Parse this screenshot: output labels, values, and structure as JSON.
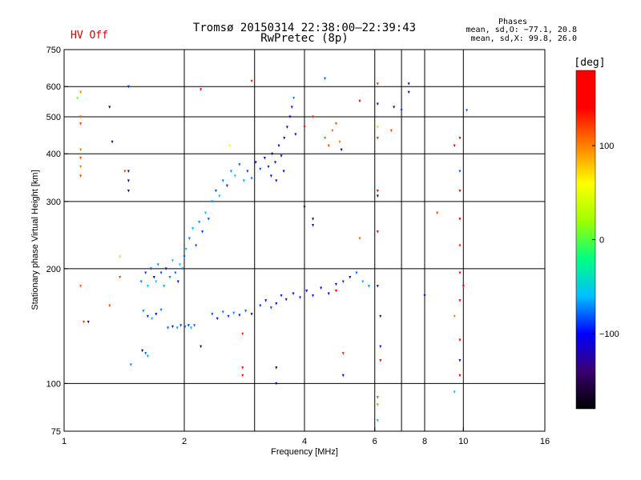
{
  "header": {
    "title_line1": "Tromsø 20150314 22:38:00–22:39:43",
    "title_line2": "RwPretec (8p)",
    "hv_status": "HV Off",
    "hv_color": "#d00000"
  },
  "phases": {
    "title": "Phases",
    "line_o": "mean, sd,O: −77.1, 20.8",
    "line_x": "mean, sd,X:  99.8, 26.0"
  },
  "chart_data": {
    "type": "scatter",
    "xlabel": "Frequency [MHz]",
    "ylabel": "Stationary phase Virtual Height [km]",
    "x_scale": "log",
    "y_scale": "log",
    "xlim": [
      1,
      16
    ],
    "ylim": [
      75,
      750
    ],
    "x_ticks": [
      {
        "v": 1,
        "label": "1"
      },
      {
        "v": 2,
        "label": "2"
      },
      {
        "v": 4,
        "label": "4"
      },
      {
        "v": 6,
        "label": "6"
      },
      {
        "v": 8,
        "label": "8"
      },
      {
        "v": 10,
        "label": "10"
      },
      {
        "v": 16,
        "label": "16"
      }
    ],
    "x_gridlines": [
      2,
      3,
      4,
      6,
      7,
      8,
      10
    ],
    "y_ticks": [
      {
        "v": 75,
        "label": "75"
      },
      {
        "v": 100,
        "label": "100"
      },
      {
        "v": 200,
        "label": "200"
      },
      {
        "v": 300,
        "label": "300"
      },
      {
        "v": 400,
        "label": "400"
      },
      {
        "v": 500,
        "label": "500"
      },
      {
        "v": 600,
        "label": "600"
      },
      {
        "v": 750,
        "label": "750"
      }
    ],
    "y_gridlines": [
      100,
      200,
      300,
      400,
      500,
      600
    ],
    "grid": true,
    "colorbar": {
      "label": "[deg]",
      "range": [
        -180,
        180
      ],
      "ticks": [
        {
          "v": 100,
          "label": "100"
        },
        {
          "v": 0,
          "label": "0"
        },
        {
          "v": -100,
          "label": "−100"
        }
      ],
      "stops": [
        "#000000",
        "#3a0070",
        "#0000ff",
        "#00c0ff",
        "#00ff80",
        "#a0ff00",
        "#ffff00",
        "#ff8000",
        "#ff0000",
        "#ff0000"
      ]
    },
    "series": [
      {
        "values": [
          {
            "x": 1.56,
            "y": 185,
            "p": -75
          },
          {
            "x": 1.6,
            "y": 195,
            "p": -90
          },
          {
            "x": 1.62,
            "y": 180,
            "p": -60
          },
          {
            "x": 1.65,
            "y": 200,
            "p": -80
          },
          {
            "x": 1.68,
            "y": 190,
            "p": -100
          },
          {
            "x": 1.7,
            "y": 185,
            "p": -55
          },
          {
            "x": 1.72,
            "y": 205,
            "p": -70
          },
          {
            "x": 1.75,
            "y": 195,
            "p": -85
          },
          {
            "x": 1.78,
            "y": 180,
            "p": -65
          },
          {
            "x": 1.8,
            "y": 200,
            "p": -95
          },
          {
            "x": 1.84,
            "y": 190,
            "p": -75
          },
          {
            "x": 1.87,
            "y": 210,
            "p": -60
          },
          {
            "x": 1.9,
            "y": 195,
            "p": -80
          },
          {
            "x": 1.93,
            "y": 185,
            "p": -100
          },
          {
            "x": 1.95,
            "y": 205,
            "p": -55
          },
          {
            "x": 1.98,
            "y": 200,
            "p": -70
          },
          {
            "x": 2.0,
            "y": 215,
            "p": -85
          },
          {
            "x": 1.58,
            "y": 155,
            "p": -70
          },
          {
            "x": 1.62,
            "y": 150,
            "p": -90
          },
          {
            "x": 1.66,
            "y": 148,
            "p": -60
          },
          {
            "x": 1.7,
            "y": 152,
            "p": -100
          },
          {
            "x": 1.75,
            "y": 156,
            "p": -75
          },
          {
            "x": 1.82,
            "y": 140,
            "p": -80
          },
          {
            "x": 1.87,
            "y": 141,
            "p": -95
          },
          {
            "x": 1.92,
            "y": 140,
            "p": -65
          },
          {
            "x": 1.96,
            "y": 142,
            "p": -85
          },
          {
            "x": 2.01,
            "y": 141,
            "p": -75
          },
          {
            "x": 2.05,
            "y": 142,
            "p": -90
          },
          {
            "x": 2.08,
            "y": 140,
            "p": -60
          },
          {
            "x": 2.12,
            "y": 142,
            "p": -80
          },
          {
            "x": 2.02,
            "y": 225,
            "p": -55
          },
          {
            "x": 2.06,
            "y": 240,
            "p": -75
          },
          {
            "x": 2.1,
            "y": 255,
            "p": -60
          },
          {
            "x": 2.14,
            "y": 230,
            "p": -85
          },
          {
            "x": 2.18,
            "y": 265,
            "p": -70
          },
          {
            "x": 2.22,
            "y": 250,
            "p": -90
          },
          {
            "x": 2.26,
            "y": 280,
            "p": -55
          },
          {
            "x": 2.3,
            "y": 270,
            "p": -80
          },
          {
            "x": 2.35,
            "y": 300,
            "p": -65
          },
          {
            "x": 2.4,
            "y": 320,
            "p": -85
          },
          {
            "x": 2.45,
            "y": 310,
            "p": -60
          },
          {
            "x": 2.5,
            "y": 340,
            "p": -75
          },
          {
            "x": 2.56,
            "y": 330,
            "p": -95
          },
          {
            "x": 2.62,
            "y": 360,
            "p": -70
          },
          {
            "x": 2.68,
            "y": 350,
            "p": -55
          },
          {
            "x": 2.75,
            "y": 375,
            "p": -80
          },
          {
            "x": 2.82,
            "y": 340,
            "p": -65
          },
          {
            "x": 2.88,
            "y": 360,
            "p": -90
          },
          {
            "x": 2.95,
            "y": 345,
            "p": -75
          },
          {
            "x": 3.02,
            "y": 380,
            "p": -100
          },
          {
            "x": 3.1,
            "y": 365,
            "p": -85
          },
          {
            "x": 3.18,
            "y": 390,
            "p": -110
          },
          {
            "x": 3.25,
            "y": 370,
            "p": -95
          },
          {
            "x": 3.32,
            "y": 400,
            "p": -115
          },
          {
            "x": 3.38,
            "y": 380,
            "p": -100
          },
          {
            "x": 3.45,
            "y": 420,
            "p": -120
          },
          {
            "x": 3.5,
            "y": 395,
            "p": -105
          },
          {
            "x": 3.56,
            "y": 440,
            "p": -115
          },
          {
            "x": 3.62,
            "y": 470,
            "p": -100
          },
          {
            "x": 3.68,
            "y": 500,
            "p": -110
          },
          {
            "x": 3.72,
            "y": 530,
            "p": -95
          },
          {
            "x": 3.76,
            "y": 560,
            "p": -70
          },
          {
            "x": 3.8,
            "y": 450,
            "p": -120
          },
          {
            "x": 3.3,
            "y": 350,
            "p": -110
          },
          {
            "x": 3.4,
            "y": 340,
            "p": -125
          },
          {
            "x": 3.55,
            "y": 360,
            "p": -105
          },
          {
            "x": 2.35,
            "y": 152,
            "p": -85
          },
          {
            "x": 2.42,
            "y": 148,
            "p": -100
          },
          {
            "x": 2.5,
            "y": 154,
            "p": -75
          },
          {
            "x": 2.58,
            "y": 150,
            "p": -90
          },
          {
            "x": 2.66,
            "y": 153,
            "p": -70
          },
          {
            "x": 2.75,
            "y": 151,
            "p": -95
          },
          {
            "x": 2.85,
            "y": 155,
            "p": -80
          },
          {
            "x": 2.95,
            "y": 152,
            "p": -100
          },
          {
            "x": 3.1,
            "y": 160,
            "p": -90
          },
          {
            "x": 3.2,
            "y": 165,
            "p": -110
          },
          {
            "x": 3.3,
            "y": 158,
            "p": -85
          },
          {
            "x": 3.4,
            "y": 162,
            "p": -105
          },
          {
            "x": 3.5,
            "y": 170,
            "p": -95
          },
          {
            "x": 3.6,
            "y": 166,
            "p": -115
          },
          {
            "x": 3.75,
            "y": 172,
            "p": -100
          },
          {
            "x": 3.9,
            "y": 168,
            "p": -90
          },
          {
            "x": 4.05,
            "y": 175,
            "p": -105
          },
          {
            "x": 4.2,
            "y": 170,
            "p": -95
          },
          {
            "x": 4.4,
            "y": 178,
            "p": -110
          },
          {
            "x": 4.6,
            "y": 172,
            "p": -100
          },
          {
            "x": 4.8,
            "y": 182,
            "p": -115
          },
          {
            "x": 5.0,
            "y": 185,
            "p": -90
          },
          {
            "x": 5.2,
            "y": 190,
            "p": -105
          },
          {
            "x": 5.4,
            "y": 195,
            "p": -80
          },
          {
            "x": 5.6,
            "y": 185,
            "p": -65
          },
          {
            "x": 5.8,
            "y": 180,
            "p": -70
          },
          {
            "x": 4.5,
            "y": 440,
            "p": 110
          },
          {
            "x": 4.6,
            "y": 420,
            "p": 120
          },
          {
            "x": 4.7,
            "y": 460,
            "p": 105
          },
          {
            "x": 4.8,
            "y": 480,
            "p": 115
          },
          {
            "x": 4.9,
            "y": 430,
            "p": 100
          },
          {
            "x": 4.2,
            "y": 500,
            "p": 125
          },
          {
            "x": 4.95,
            "y": 410,
            "p": -100
          },
          {
            "x": 1.1,
            "y": 580,
            "p": 100
          },
          {
            "x": 1.1,
            "y": 500,
            "p": 110
          },
          {
            "x": 1.1,
            "y": 480,
            "p": 120
          },
          {
            "x": 1.1,
            "y": 410,
            "p": 105
          },
          {
            "x": 1.1,
            "y": 390,
            "p": 115
          },
          {
            "x": 1.1,
            "y": 370,
            "p": 100
          },
          {
            "x": 1.1,
            "y": 350,
            "p": 120
          },
          {
            "x": 1.08,
            "y": 560,
            "p": 10
          },
          {
            "x": 1.1,
            "y": 180,
            "p": 110
          },
          {
            "x": 1.12,
            "y": 145,
            "p": 120
          },
          {
            "x": 1.15,
            "y": 145,
            "p": -140
          },
          {
            "x": 1.3,
            "y": 530,
            "p": -150
          },
          {
            "x": 1.32,
            "y": 430,
            "p": -140
          },
          {
            "x": 1.38,
            "y": 215,
            "p": 20
          },
          {
            "x": 1.45,
            "y": 360,
            "p": -140
          },
          {
            "x": 1.45,
            "y": 340,
            "p": -150
          },
          {
            "x": 1.45,
            "y": 320,
            "p": -130
          },
          {
            "x": 1.45,
            "y": 600,
            "p": -90
          },
          {
            "x": 1.42,
            "y": 360,
            "p": 120
          },
          {
            "x": 1.3,
            "y": 160,
            "p": 115
          },
          {
            "x": 1.38,
            "y": 190,
            "p": 120
          },
          {
            "x": 1.47,
            "y": 112,
            "p": -70
          },
          {
            "x": 1.57,
            "y": 122,
            "p": -150
          },
          {
            "x": 1.6,
            "y": 120,
            "p": -80
          },
          {
            "x": 1.62,
            "y": 118,
            "p": -65
          },
          {
            "x": 2.2,
            "y": 125,
            "p": -150
          },
          {
            "x": 2.2,
            "y": 590,
            "p": 150
          },
          {
            "x": 2.6,
            "y": 420,
            "p": 60
          },
          {
            "x": 2.8,
            "y": 135,
            "p": 130
          },
          {
            "x": 2.8,
            "y": 110,
            "p": 140
          },
          {
            "x": 2.8,
            "y": 105,
            "p": 150
          },
          {
            "x": 2.95,
            "y": 620,
            "p": 130
          },
          {
            "x": 3.4,
            "y": 110,
            "p": -160
          },
          {
            "x": 3.4,
            "y": 100,
            "p": -120
          },
          {
            "x": 4.0,
            "y": 470,
            "p": 150
          },
          {
            "x": 4.0,
            "y": 290,
            "p": -150
          },
          {
            "x": 4.2,
            "y": 270,
            "p": -140
          },
          {
            "x": 4.2,
            "y": 260,
            "p": -130
          },
          {
            "x": 4.5,
            "y": 630,
            "p": -80
          },
          {
            "x": 4.8,
            "y": 175,
            "p": 140
          },
          {
            "x": 5.0,
            "y": 120,
            "p": 130
          },
          {
            "x": 5.0,
            "y": 105,
            "p": -100
          },
          {
            "x": 5.5,
            "y": 550,
            "p": 140
          },
          {
            "x": 5.5,
            "y": 240,
            "p": 110
          },
          {
            "x": 6.1,
            "y": 610,
            "p": 130
          },
          {
            "x": 6.1,
            "y": 540,
            "p": -130
          },
          {
            "x": 6.1,
            "y": 470,
            "p": 20
          },
          {
            "x": 6.1,
            "y": 440,
            "p": 130
          },
          {
            "x": 6.1,
            "y": 320,
            "p": 160
          },
          {
            "x": 6.1,
            "y": 310,
            "p": -150
          },
          {
            "x": 6.1,
            "y": 250,
            "p": 140
          },
          {
            "x": 6.1,
            "y": 180,
            "p": -120
          },
          {
            "x": 6.2,
            "y": 150,
            "p": -140
          },
          {
            "x": 6.2,
            "y": 125,
            "p": -110
          },
          {
            "x": 6.2,
            "y": 115,
            "p": 150
          },
          {
            "x": 6.1,
            "y": 92,
            "p": 120
          },
          {
            "x": 6.1,
            "y": 88,
            "p": 100
          },
          {
            "x": 6.1,
            "y": 80,
            "p": -60
          },
          {
            "x": 6.6,
            "y": 460,
            "p": 120
          },
          {
            "x": 6.7,
            "y": 530,
            "p": -150
          },
          {
            "x": 7.0,
            "y": 520,
            "p": -90
          },
          {
            "x": 7.3,
            "y": 610,
            "p": -130
          },
          {
            "x": 7.3,
            "y": 580,
            "p": -140
          },
          {
            "x": 8.0,
            "y": 170,
            "p": -120
          },
          {
            "x": 8.6,
            "y": 280,
            "p": 120
          },
          {
            "x": 9.5,
            "y": 420,
            "p": 140
          },
          {
            "x": 9.5,
            "y": 150,
            "p": 100
          },
          {
            "x": 9.5,
            "y": 95,
            "p": -60
          },
          {
            "x": 9.8,
            "y": 440,
            "p": 150
          },
          {
            "x": 9.8,
            "y": 360,
            "p": -80
          },
          {
            "x": 9.8,
            "y": 320,
            "p": 160
          },
          {
            "x": 9.8,
            "y": 270,
            "p": 140
          },
          {
            "x": 9.8,
            "y": 230,
            "p": 130
          },
          {
            "x": 9.8,
            "y": 195,
            "p": 150
          },
          {
            "x": 9.8,
            "y": 165,
            "p": 140
          },
          {
            "x": 9.8,
            "y": 130,
            "p": 160
          },
          {
            "x": 9.8,
            "y": 115,
            "p": -110
          },
          {
            "x": 9.8,
            "y": 105,
            "p": 150
          },
          {
            "x": 10.2,
            "y": 520,
            "p": -80
          },
          {
            "x": 10.0,
            "y": 180,
            "p": 150
          }
        ]
      }
    ]
  }
}
